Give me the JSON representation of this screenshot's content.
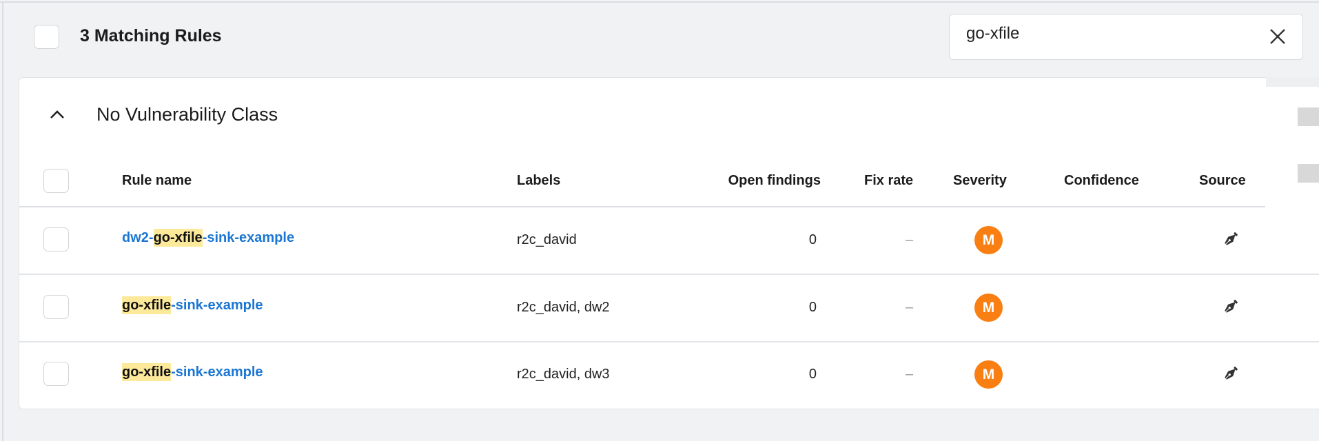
{
  "header": {
    "title": "3 Matching Rules"
  },
  "search": {
    "value": "go-xfile",
    "clear_icon": "close-icon"
  },
  "group": {
    "title": "No Vulnerability Class",
    "expanded": true
  },
  "columns": [
    "Rule name",
    "Labels",
    "Open findings",
    "Fix rate",
    "Severity",
    "Confidence",
    "Source"
  ],
  "rows": [
    {
      "name_prefix": "dw2-",
      "name_match": "go-xfile",
      "name_suffix": "-sink-example",
      "labels": "r2c_david",
      "open_findings": "0",
      "fix_rate": "–",
      "severity": "M",
      "confidence": "",
      "source_icon": "pen-nib-icon"
    },
    {
      "name_prefix": "",
      "name_match": "go-xfile",
      "name_suffix": "-sink-example",
      "labels": "r2c_david, dw2",
      "open_findings": "0",
      "fix_rate": "–",
      "severity": "M",
      "confidence": "",
      "source_icon": "pen-nib-icon"
    },
    {
      "name_prefix": "",
      "name_match": "go-xfile",
      "name_suffix": "-sink-example",
      "labels": "r2c_david, dw3",
      "open_findings": "0",
      "fix_rate": "–",
      "severity": "M",
      "confidence": "",
      "source_icon": "pen-nib-icon"
    }
  ],
  "colors": {
    "link": "#1a76d2",
    "highlight": "#fde99a",
    "severity_medium": "#f97f12"
  }
}
